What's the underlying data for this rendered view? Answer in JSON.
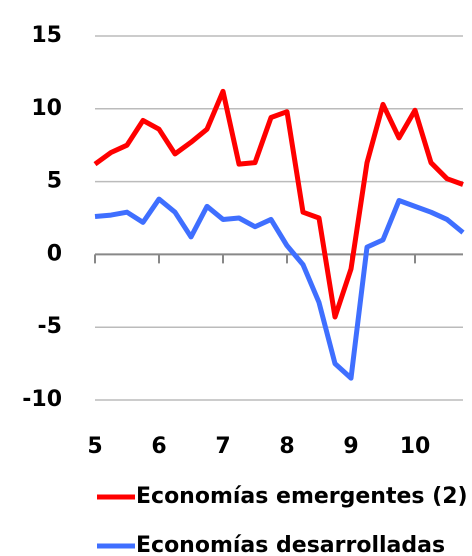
{
  "chart_data": {
    "type": "line",
    "x": [
      5,
      5.25,
      5.5,
      5.75,
      6,
      6.25,
      6.5,
      6.75,
      7,
      7.25,
      7.5,
      7.75,
      8,
      8.25,
      8.5,
      8.75,
      9,
      9.25,
      9.5,
      9.75,
      10,
      10.25,
      10.5,
      10.75
    ],
    "series": [
      {
        "name": "Economías emergentes (2)",
        "color": "#ff0000",
        "values": [
          6.2,
          7.0,
          7.5,
          9.2,
          8.6,
          6.9,
          7.7,
          8.6,
          11.2,
          6.2,
          6.3,
          9.4,
          9.8,
          2.9,
          2.5,
          -4.3,
          -1.0,
          6.3,
          10.3,
          8.0,
          9.9,
          6.3,
          5.2,
          4.8
        ]
      },
      {
        "name": "Economías desarrolladas",
        "color": "#3f6fff",
        "values": [
          2.6,
          2.7,
          2.9,
          2.2,
          3.8,
          2.9,
          1.2,
          3.3,
          2.4,
          2.5,
          1.9,
          2.4,
          0.6,
          -0.7,
          -3.3,
          -7.5,
          -8.5,
          0.5,
          1.0,
          3.7,
          3.3,
          2.9,
          2.4,
          1.5
        ]
      }
    ],
    "xlim": [
      5,
      10.75
    ],
    "xticks": [
      5,
      6,
      7,
      8,
      9,
      10
    ],
    "ylim": [
      -10,
      15
    ],
    "yticks": [
      -10,
      -5,
      0,
      5,
      10,
      15
    ],
    "grid": true,
    "legend": "bottom"
  }
}
